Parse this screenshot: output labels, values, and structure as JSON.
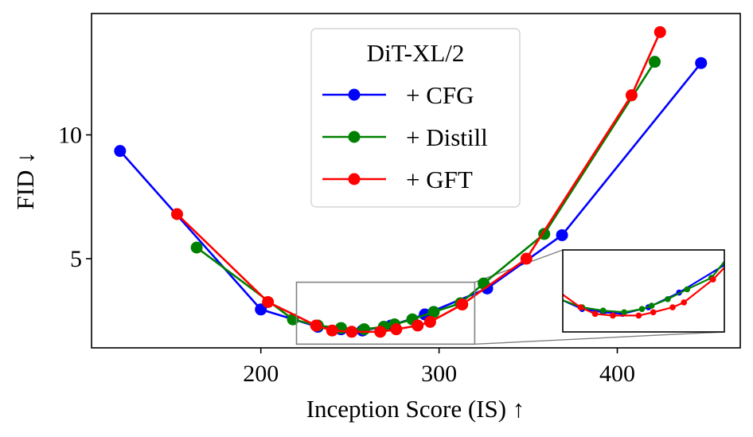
{
  "chart_data": {
    "type": "line",
    "title": "",
    "xlabel": "Inception Score (IS) ↑",
    "ylabel": "FID ↓",
    "xlim": [
      105,
      469
    ],
    "ylim": [
      1.4,
      14.9
    ],
    "xticks": [
      200,
      300,
      400
    ],
    "xtick_labels": [
      "200",
      "300",
      "400"
    ],
    "yticks": [
      5,
      10
    ],
    "ytick_labels": [
      "5",
      "10"
    ],
    "legend": {
      "title": "DiT-XL/2",
      "placement": "top-center"
    },
    "series": [
      {
        "name": "+ CFG",
        "color": "#0000ff",
        "x": [
          121,
          200,
          232,
          245,
          257,
          273,
          292,
          327,
          369,
          447
        ],
        "y": [
          9.35,
          2.95,
          2.25,
          2.15,
          2.1,
          2.3,
          2.75,
          3.8,
          5.95,
          12.9
        ]
      },
      {
        "name": "+ Distill",
        "color": "#008000",
        "x": [
          164,
          218,
          232,
          245,
          258,
          269,
          275,
          285,
          297,
          312,
          325,
          359,
          421
        ],
        "y": [
          5.45,
          2.55,
          2.3,
          2.2,
          2.15,
          2.25,
          2.35,
          2.55,
          2.85,
          3.2,
          4.0,
          6.0,
          12.95
        ]
      },
      {
        "name": "+ GFT",
        "color": "#ff0000",
        "x": [
          153,
          204,
          231,
          240,
          251,
          267,
          276,
          288,
          295,
          313,
          349,
          408,
          424
        ],
        "y": [
          6.8,
          3.25,
          2.3,
          2.1,
          2.05,
          2.05,
          2.15,
          2.3,
          2.45,
          3.15,
          5.0,
          11.6,
          14.15
        ]
      }
    ],
    "inset": {
      "zoom_xlim": [
        220,
        320
      ],
      "zoom_ylim": [
        1.55,
        4.05
      ]
    }
  }
}
